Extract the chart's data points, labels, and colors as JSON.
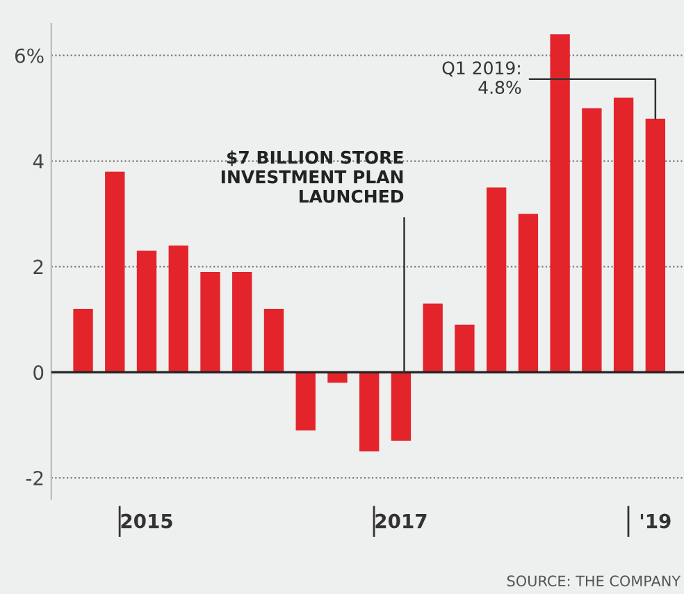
{
  "chart_data": {
    "type": "bar",
    "categories": [
      null,
      null,
      "2015",
      null,
      null,
      null,
      null,
      null,
      null,
      null,
      "2017",
      null,
      null,
      null,
      null,
      null,
      null,
      null,
      "'19"
    ],
    "values": [
      1.2,
      3.8,
      2.3,
      2.4,
      1.9,
      1.9,
      1.2,
      -1.1,
      -0.2,
      -1.5,
      -1.3,
      1.3,
      0.9,
      3.5,
      3.0,
      6.4,
      5.0,
      5.2,
      4.8
    ],
    "color": "#e3242b",
    "ylim": [
      -2.4,
      6.6
    ],
    "yticks": [
      {
        "value": -2,
        "label": "-2"
      },
      0,
      2,
      4,
      {
        "value": 6,
        "label": "6%"
      }
    ],
    "grid": "y",
    "annotations": [
      {
        "text": "Q1 2019:\n4.8%",
        "x": "'19",
        "y": 4.8
      },
      {
        "text": "$7 BILLION STORE\nINVESTMENT PLAN\nLAUNCHED",
        "x": "2017",
        "y": 0
      },
      "SOURCE: THE COMPANY"
    ]
  }
}
